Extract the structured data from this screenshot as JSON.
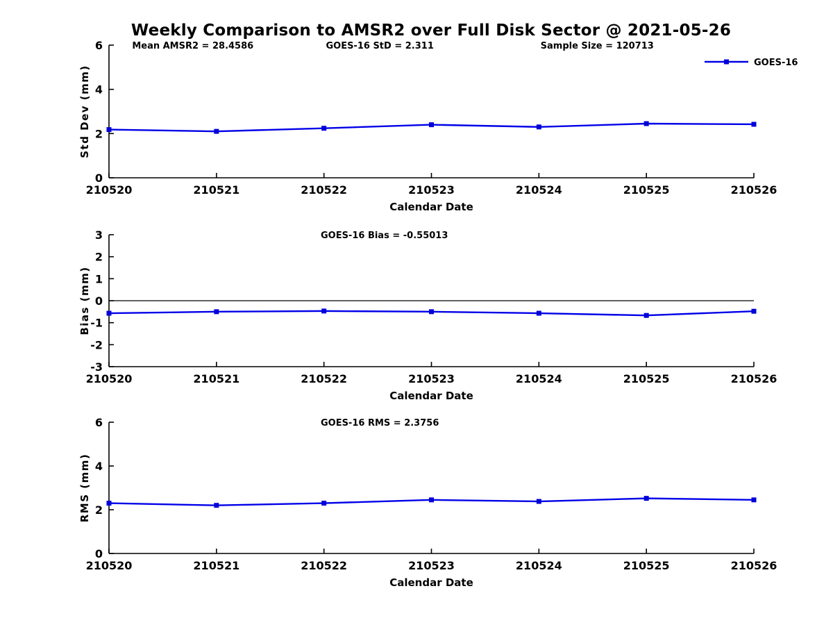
{
  "title": "Weekly Comparison to AMSR2 over Full Disk Sector @ 2021-05-26",
  "colors": {
    "line": "#0000e8",
    "marker": "#0000d8",
    "axis": "#000000",
    "text": "#000000",
    "background": "#ffffff"
  },
  "legend": {
    "label": "GOES-16",
    "position": "upper right"
  },
  "xlabel": "Calendar Date",
  "chart_data": [
    {
      "type": "line",
      "ylabel": "Std Dev (mm)",
      "xlabel": "Calendar Date",
      "x": [
        "210520",
        "210521",
        "210522",
        "210523",
        "210524",
        "210525",
        "210526"
      ],
      "series": [
        {
          "name": "GOES-16",
          "values": [
            2.18,
            2.1,
            2.24,
            2.4,
            2.3,
            2.45,
            2.42
          ]
        }
      ],
      "ylim": [
        0,
        6
      ],
      "yticks": [
        0,
        2,
        4,
        6
      ],
      "grid": false,
      "zero_line": false,
      "show_legend": true,
      "annotations": [
        {
          "text": "Mean AMSR2 = 28.4586",
          "fx": 0.13
        },
        {
          "text": "GOES-16 StD = 2.311",
          "fx": 0.42
        },
        {
          "text": "Sample Size = 120713",
          "fx": 0.757
        }
      ]
    },
    {
      "type": "line",
      "ylabel": "Bias (mm)",
      "xlabel": "Calendar Date",
      "x": [
        "210520",
        "210521",
        "210522",
        "210523",
        "210524",
        "210525",
        "210526"
      ],
      "series": [
        {
          "name": "GOES-16",
          "values": [
            -0.57,
            -0.5,
            -0.47,
            -0.5,
            -0.57,
            -0.67,
            -0.48
          ]
        }
      ],
      "ylim": [
        -3,
        3
      ],
      "yticks": [
        -3,
        -2,
        -1,
        0,
        1,
        2,
        3
      ],
      "grid": false,
      "zero_line": true,
      "show_legend": false,
      "annotations": [
        {
          "text": "GOES-16 Bias  = -0.55013",
          "fx": 0.427
        }
      ]
    },
    {
      "type": "line",
      "ylabel": "RMS (mm)",
      "xlabel": "Calendar Date",
      "x": [
        "210520",
        "210521",
        "210522",
        "210523",
        "210524",
        "210525",
        "210526"
      ],
      "series": [
        {
          "name": "GOES-16",
          "values": [
            2.3,
            2.2,
            2.3,
            2.45,
            2.38,
            2.52,
            2.45
          ]
        }
      ],
      "ylim": [
        0,
        6
      ],
      "yticks": [
        0,
        2,
        4,
        6
      ],
      "grid": false,
      "zero_line": false,
      "show_legend": false,
      "annotations": [
        {
          "text": "GOES-16 RMS = 2.3756",
          "fx": 0.42
        }
      ]
    }
  ]
}
